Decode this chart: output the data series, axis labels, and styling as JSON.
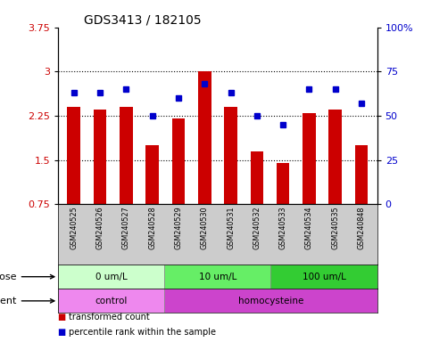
{
  "title": "GDS3413 / 182105",
  "samples": [
    "GSM240525",
    "GSM240526",
    "GSM240527",
    "GSM240528",
    "GSM240529",
    "GSM240530",
    "GSM240531",
    "GSM240532",
    "GSM240533",
    "GSM240534",
    "GSM240535",
    "GSM240848"
  ],
  "red_values": [
    2.4,
    2.35,
    2.4,
    1.75,
    2.2,
    3.0,
    2.4,
    1.65,
    1.45,
    2.3,
    2.35,
    1.75
  ],
  "blue_values": [
    63,
    63,
    65,
    50,
    60,
    68,
    63,
    50,
    45,
    65,
    65,
    57
  ],
  "ylim_left": [
    0.75,
    3.75
  ],
  "ylim_right": [
    0,
    100
  ],
  "yticks_left": [
    0.75,
    1.5,
    2.25,
    3.0,
    3.75
  ],
  "yticks_left_labels": [
    "0.75",
    "1.5",
    "2.25",
    "3",
    "3.75"
  ],
  "yticks_right": [
    0,
    25,
    50,
    75,
    100
  ],
  "yticks_right_labels": [
    "0",
    "25",
    "50",
    "75",
    "100%"
  ],
  "hgrid_at": [
    1.5,
    2.25,
    3.0
  ],
  "dose_groups": [
    {
      "label": "0 um/L",
      "start": 0,
      "end": 4,
      "color": "#ccffcc"
    },
    {
      "label": "10 um/L",
      "start": 4,
      "end": 8,
      "color": "#66ee66"
    },
    {
      "label": "100 um/L",
      "start": 8,
      "end": 12,
      "color": "#33cc33"
    }
  ],
  "agent_groups": [
    {
      "label": "control",
      "start": 0,
      "end": 4,
      "color": "#ee88ee"
    },
    {
      "label": "homocysteine",
      "start": 4,
      "end": 12,
      "color": "#cc44cc"
    }
  ],
  "red_color": "#cc0000",
  "blue_color": "#0000cc",
  "bar_width": 0.5,
  "tick_label_color_left": "#cc0000",
  "tick_label_color_right": "#0000cc",
  "background_color": "#ffffff",
  "xlbl_bg": "#cccccc",
  "dose_label": "dose",
  "agent_label": "agent",
  "legend_red_text": "transformed count",
  "legend_blue_text": "percentile rank within the sample"
}
